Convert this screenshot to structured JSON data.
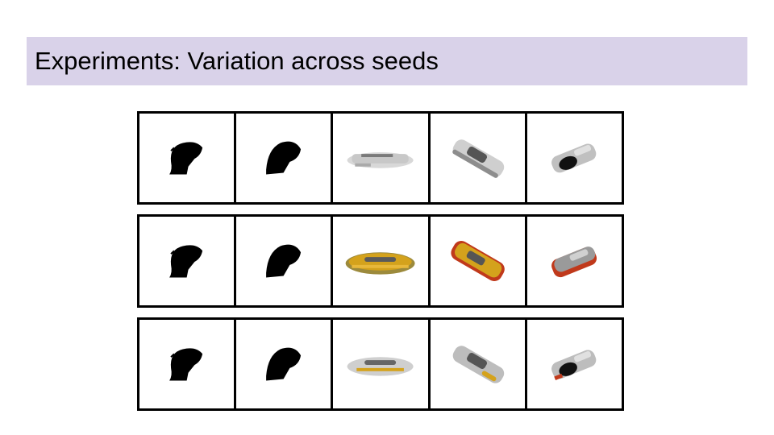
{
  "slide": {
    "title": "Experiments: Variation across seeds"
  },
  "grid": {
    "rows": [
      {
        "cells": [
          "black-silhouette",
          "black-silhouette",
          "gray-car-side",
          "gray-car-diagonal",
          "gray-car-small"
        ]
      },
      {
        "cells": [
          "black-silhouette",
          "black-silhouette",
          "yellow-car-side",
          "yellow-car-diagonal",
          "red-gray-car-small"
        ]
      },
      {
        "cells": [
          "black-silhouette",
          "black-silhouette",
          "gray-car-side-yellow",
          "gray-car-diagonal-yellow",
          "gray-car-small-red"
        ]
      }
    ]
  },
  "colors": {
    "title_bar": "#d9d2e9",
    "silhouette": "#000000",
    "car_gray": "#9a9a9a",
    "car_yellow": "#d4a21c",
    "car_red": "#c0391b"
  }
}
